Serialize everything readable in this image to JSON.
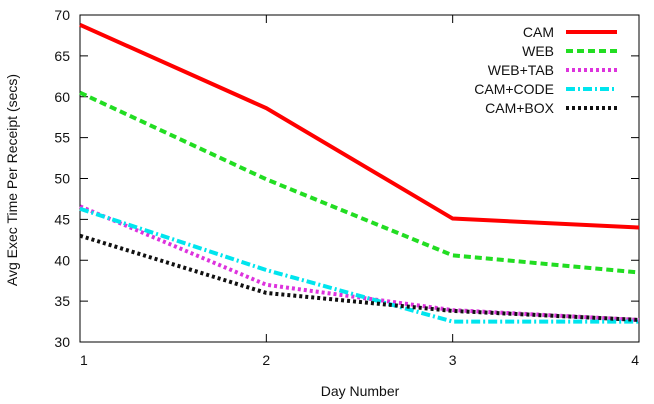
{
  "chart_data": {
    "type": "line",
    "title": "",
    "xlabel": "Day Number",
    "ylabel": "Avg Exec Time Per Receipt (secs)",
    "x": [
      1,
      2,
      3,
      4
    ],
    "xlim": [
      1,
      4
    ],
    "ylim": [
      30,
      70
    ],
    "xticks": [
      "1",
      "2",
      "3",
      "4"
    ],
    "yticks": [
      "30",
      "35",
      "40",
      "45",
      "50",
      "55",
      "60",
      "65",
      "70"
    ],
    "legend_position": "top-right",
    "grid": false,
    "series": [
      {
        "name": "CAM",
        "values": [
          68.8,
          58.6,
          45.1,
          44.0
        ],
        "color": "#ff0000",
        "dash": "solid"
      },
      {
        "name": "WEB",
        "values": [
          60.5,
          49.9,
          40.6,
          38.5
        ],
        "color": "#22dd22",
        "dash": "dash"
      },
      {
        "name": "WEB+TAB",
        "values": [
          46.6,
          37.0,
          33.9,
          32.7
        ],
        "color": "#dd33dd",
        "dash": "dot"
      },
      {
        "name": "CAM+CODE",
        "values": [
          46.3,
          38.8,
          32.5,
          32.5
        ],
        "color": "#00e5ee",
        "dash": "dashdot"
      },
      {
        "name": "CAM+BOX",
        "values": [
          43.0,
          36.0,
          33.8,
          32.7
        ],
        "color": "#111111",
        "dash": "dot"
      }
    ]
  }
}
